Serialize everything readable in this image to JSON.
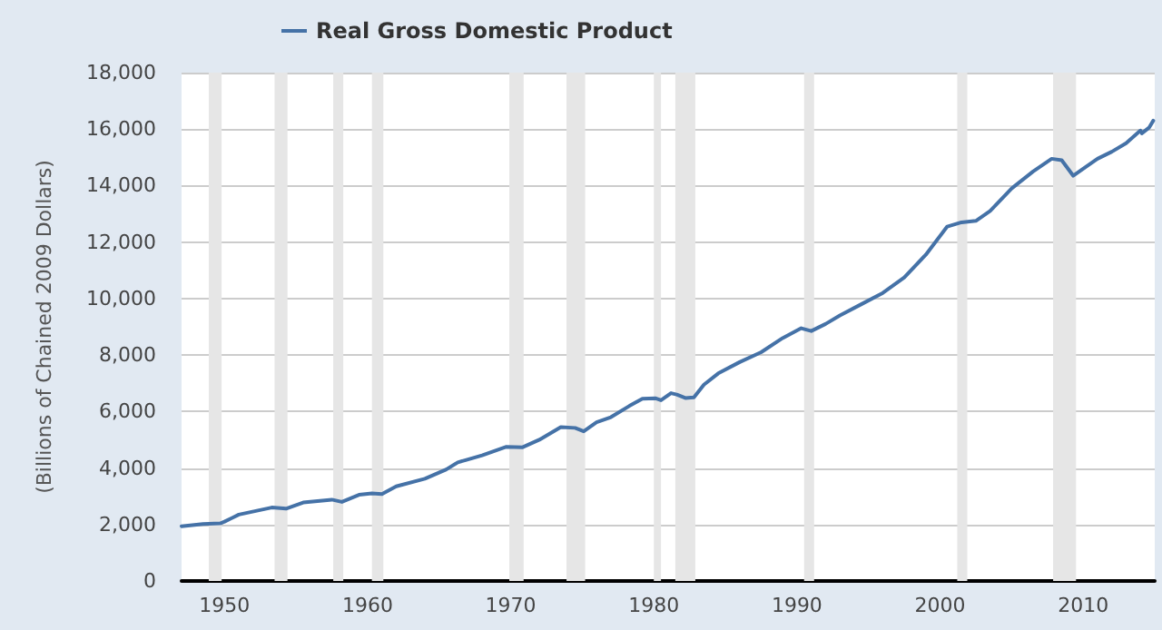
{
  "chart_data": {
    "type": "line",
    "ylabel": "(Billions of Chained 2009 Dollars)",
    "series": [
      {
        "name": "Real Gross Domestic Product",
        "color": "#4572a7",
        "x": [
          1947,
          1948.5,
          1949.7,
          1950,
          1951,
          1953.3,
          1954.3,
          1955.5,
          1957.5,
          1958.2,
          1959.4,
          1960.3,
          1961,
          1962,
          1964,
          1965.5,
          1966.3,
          1968,
          1969.7,
          1970.8,
          1972,
          1973.5,
          1974.5,
          1975.1,
          1976,
          1977,
          1978.3,
          1979.2,
          1980.1,
          1980.5,
          1981.2,
          1981.6,
          1982.2,
          1982.8,
          1983.5,
          1984.5,
          1986,
          1987.5,
          1989,
          1990.3,
          1991,
          1992,
          1993,
          1994.5,
          1996,
          1997.5,
          1999,
          2000.5,
          2001.5,
          2002.5,
          2003.5,
          2005,
          2006.5,
          2007.8,
          2008.5,
          2009.3,
          2010,
          2011,
          2012,
          2013,
          2014,
          2014.1,
          2014.6,
          2014.9
        ],
        "values": [
          1940,
          2020,
          2040,
          2100,
          2350,
          2600,
          2560,
          2780,
          2880,
          2800,
          3050,
          3100,
          3080,
          3350,
          3620,
          3950,
          4200,
          4450,
          4750,
          4730,
          5000,
          5450,
          5420,
          5300,
          5620,
          5800,
          6200,
          6450,
          6470,
          6400,
          6650,
          6600,
          6480,
          6500,
          6950,
          7350,
          7750,
          8100,
          8600,
          8950,
          8850,
          9100,
          9400,
          9800,
          10200,
          10750,
          11550,
          12550,
          12700,
          12750,
          13100,
          13900,
          14500,
          14950,
          14900,
          14350,
          14600,
          14950,
          15200,
          15500,
          15950,
          15850,
          16050,
          16300
        ]
      }
    ],
    "xlim": [
      1947,
      2015
    ],
    "xticks": [
      1950,
      1960,
      1970,
      1980,
      1990,
      2000,
      2010
    ],
    "ylim": [
      0,
      18000
    ],
    "yticks": [
      0,
      {
        "value": 2000,
        "label": "2,000"
      },
      {
        "value": 4000,
        "label": "4,000"
      },
      {
        "value": 6000,
        "label": "6,000"
      },
      {
        "value": 8000,
        "label": "8,000"
      },
      {
        "value": 10000,
        "label": "10,000"
      },
      {
        "value": 12000,
        "label": "12,000"
      },
      {
        "value": 14000,
        "label": "14,000"
      },
      {
        "value": 16000,
        "label": "16,000"
      },
      {
        "value": 18000,
        "label": "18,000"
      }
    ],
    "bands": [
      {
        "axis": "x",
        "from": 1948.9,
        "to": 1949.8,
        "color": "#e6e6e6"
      },
      {
        "axis": "x",
        "from": 1953.5,
        "to": 1954.4,
        "color": "#e6e6e6"
      },
      {
        "axis": "x",
        "from": 1957.6,
        "to": 1958.3,
        "color": "#e6e6e6"
      },
      {
        "axis": "x",
        "from": 1960.3,
        "to": 1961.1,
        "color": "#e6e6e6"
      },
      {
        "axis": "x",
        "from": 1969.9,
        "to": 1970.9,
        "color": "#e6e6e6"
      },
      {
        "axis": "x",
        "from": 1973.9,
        "to": 1975.2,
        "color": "#e6e6e6"
      },
      {
        "axis": "x",
        "from": 1980.0,
        "to": 1980.5,
        "color": "#e6e6e6"
      },
      {
        "axis": "x",
        "from": 1981.5,
        "to": 1982.9,
        "color": "#e6e6e6"
      },
      {
        "axis": "x",
        "from": 1990.5,
        "to": 1991.2,
        "color": "#e6e6e6"
      },
      {
        "axis": "x",
        "from": 2001.2,
        "to": 2001.9,
        "color": "#e6e6e6"
      },
      {
        "axis": "x",
        "from": 2007.9,
        "to": 2009.5,
        "color": "#e6e6e6"
      }
    ],
    "grid": "y",
    "legend": "top left",
    "marker": "none",
    "line_style": "solid"
  }
}
